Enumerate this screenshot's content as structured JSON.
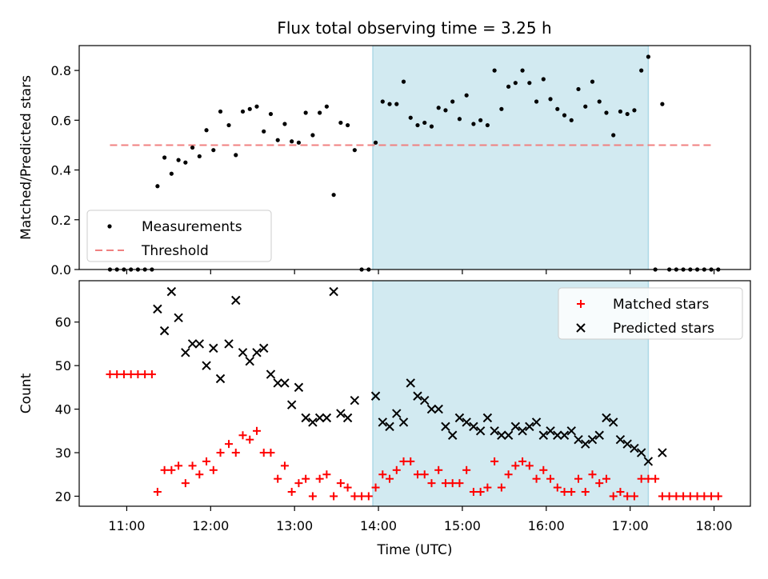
{
  "title": "Flux total observing time = 3.25 h",
  "colors": {
    "measurement": "#000000",
    "threshold": "#f08080",
    "matched": "#ff0000",
    "predicted": "#000000",
    "shade": "#add8e6"
  },
  "chart_data": [
    {
      "type": "scatter",
      "panel": "top",
      "xlabel": "",
      "ylabel": "Matched/Predicted stars",
      "ylim": [
        0,
        0.9
      ],
      "yticks": [
        "0.0",
        "0.2",
        "0.4",
        "0.6",
        "0.8"
      ],
      "x_tick_labels": [],
      "shaded_span": [
        "13:56",
        "17:13"
      ],
      "threshold": {
        "name": "Threshold",
        "value": 0.5,
        "x_range": [
          "10:48",
          "18:00"
        ]
      },
      "legend": [
        "Measurements",
        "Threshold"
      ],
      "legend_position": "lower-left",
      "series": [
        {
          "name": "Measurements",
          "points": [
            [
              "10:48",
              0
            ],
            [
              "10:53",
              0
            ],
            [
              "10:58",
              0
            ],
            [
              "11:03",
              0
            ],
            [
              "11:08",
              0
            ],
            [
              "11:13",
              0
            ],
            [
              "11:18",
              0
            ],
            [
              "11:22",
              0.335
            ],
            [
              "11:27",
              0.45
            ],
            [
              "11:32",
              0.385
            ],
            [
              "11:37",
              0.44
            ],
            [
              "11:42",
              0.43
            ],
            [
              "11:47",
              0.49
            ],
            [
              "11:52",
              0.455
            ],
            [
              "11:57",
              0.56
            ],
            [
              "12:02",
              0.48
            ],
            [
              "12:07",
              0.635
            ],
            [
              "12:13",
              0.58
            ],
            [
              "12:18",
              0.46
            ],
            [
              "12:23",
              0.635
            ],
            [
              "12:28",
              0.645
            ],
            [
              "12:33",
              0.655
            ],
            [
              "12:38",
              0.555
            ],
            [
              "12:43",
              0.625
            ],
            [
              "12:48",
              0.52
            ],
            [
              "12:53",
              0.585
            ],
            [
              "12:58",
              0.515
            ],
            [
              "13:03",
              0.51
            ],
            [
              "13:08",
              0.63
            ],
            [
              "13:13",
              0.54
            ],
            [
              "13:18",
              0.63
            ],
            [
              "13:23",
              0.655
            ],
            [
              "13:28",
              0.3
            ],
            [
              "13:33",
              0.59
            ],
            [
              "13:38",
              0.58
            ],
            [
              "13:43",
              0.48
            ],
            [
              "13:48",
              0
            ],
            [
              "13:53",
              0
            ],
            [
              "13:58",
              0.51
            ],
            [
              "14:03",
              0.675
            ],
            [
              "14:08",
              0.665
            ],
            [
              "14:13",
              0.665
            ],
            [
              "14:18",
              0.755
            ],
            [
              "14:23",
              0.61
            ],
            [
              "14:28",
              0.58
            ],
            [
              "14:33",
              0.59
            ],
            [
              "14:38",
              0.575
            ],
            [
              "14:43",
              0.65
            ],
            [
              "14:48",
              0.64
            ],
            [
              "14:53",
              0.675
            ],
            [
              "14:58",
              0.605
            ],
            [
              "15:03",
              0.7
            ],
            [
              "15:08",
              0.585
            ],
            [
              "15:13",
              0.6
            ],
            [
              "15:18",
              0.58
            ],
            [
              "15:23",
              0.8
            ],
            [
              "15:28",
              0.645
            ],
            [
              "15:33",
              0.735
            ],
            [
              "15:38",
              0.75
            ],
            [
              "15:43",
              0.8
            ],
            [
              "15:48",
              0.75
            ],
            [
              "15:53",
              0.675
            ],
            [
              "15:58",
              0.765
            ],
            [
              "16:03",
              0.685
            ],
            [
              "16:08",
              0.645
            ],
            [
              "16:13",
              0.62
            ],
            [
              "16:18",
              0.6
            ],
            [
              "16:23",
              0.725
            ],
            [
              "16:28",
              0.655
            ],
            [
              "16:33",
              0.755
            ],
            [
              "16:38",
              0.675
            ],
            [
              "16:43",
              0.63
            ],
            [
              "16:48",
              0.54
            ],
            [
              "16:53",
              0.635
            ],
            [
              "16:58",
              0.625
            ],
            [
              "17:03",
              0.64
            ],
            [
              "17:08",
              0.8
            ],
            [
              "17:13",
              0.855
            ],
            [
              "17:18",
              0
            ],
            [
              "17:23",
              0.665
            ],
            [
              "17:28",
              0
            ],
            [
              "17:33",
              0
            ],
            [
              "17:38",
              0
            ],
            [
              "17:43",
              0
            ],
            [
              "17:48",
              0
            ],
            [
              "17:53",
              0
            ],
            [
              "17:58",
              0
            ],
            [
              "18:03",
              0
            ]
          ]
        }
      ]
    },
    {
      "type": "scatter",
      "panel": "bottom",
      "xlabel": "Time (UTC)",
      "ylabel": "Count",
      "ylim": [
        17.7,
        69.5
      ],
      "yticks": [
        "20",
        "30",
        "40",
        "50",
        "60"
      ],
      "x_tick_labels": [
        "11:00",
        "12:00",
        "13:00",
        "14:00",
        "15:00",
        "16:00",
        "17:00",
        "18:00"
      ],
      "shaded_span": [
        "13:56",
        "17:13"
      ],
      "legend": [
        "Matched stars",
        "Predicted stars"
      ],
      "legend_position": "top-right",
      "series": [
        {
          "name": "Matched stars",
          "marker": "+",
          "points": [
            [
              "10:48",
              48
            ],
            [
              "10:53",
              48
            ],
            [
              "10:58",
              48
            ],
            [
              "11:03",
              48
            ],
            [
              "11:08",
              48
            ],
            [
              "11:13",
              48
            ],
            [
              "11:18",
              48
            ],
            [
              "11:22",
              21
            ],
            [
              "11:27",
              26
            ],
            [
              "11:32",
              26
            ],
            [
              "11:37",
              27
            ],
            [
              "11:42",
              23
            ],
            [
              "11:47",
              27
            ],
            [
              "11:52",
              25
            ],
            [
              "11:57",
              28
            ],
            [
              "12:02",
              26
            ],
            [
              "12:07",
              30
            ],
            [
              "12:13",
              32
            ],
            [
              "12:18",
              30
            ],
            [
              "12:23",
              34
            ],
            [
              "12:28",
              33
            ],
            [
              "12:33",
              35
            ],
            [
              "12:38",
              30
            ],
            [
              "12:43",
              30
            ],
            [
              "12:48",
              24
            ],
            [
              "12:53",
              27
            ],
            [
              "12:58",
              21
            ],
            [
              "13:03",
              23
            ],
            [
              "13:08",
              24
            ],
            [
              "13:13",
              20
            ],
            [
              "13:18",
              24
            ],
            [
              "13:23",
              25
            ],
            [
              "13:28",
              20
            ],
            [
              "13:33",
              23
            ],
            [
              "13:38",
              22
            ],
            [
              "13:43",
              20
            ],
            [
              "13:48",
              20
            ],
            [
              "13:53",
              20
            ],
            [
              "13:58",
              22
            ],
            [
              "14:03",
              25
            ],
            [
              "14:08",
              24
            ],
            [
              "14:13",
              26
            ],
            [
              "14:18",
              28
            ],
            [
              "14:23",
              28
            ],
            [
              "14:28",
              25
            ],
            [
              "14:33",
              25
            ],
            [
              "14:38",
              23
            ],
            [
              "14:43",
              26
            ],
            [
              "14:48",
              23
            ],
            [
              "14:53",
              23
            ],
            [
              "14:58",
              23
            ],
            [
              "15:03",
              26
            ],
            [
              "15:08",
              21
            ],
            [
              "15:13",
              21
            ],
            [
              "15:18",
              22
            ],
            [
              "15:23",
              28
            ],
            [
              "15:28",
              22
            ],
            [
              "15:33",
              25
            ],
            [
              "15:38",
              27
            ],
            [
              "15:43",
              28
            ],
            [
              "15:48",
              27
            ],
            [
              "15:53",
              24
            ],
            [
              "15:58",
              26
            ],
            [
              "16:03",
              24
            ],
            [
              "16:08",
              22
            ],
            [
              "16:13",
              21
            ],
            [
              "16:18",
              21
            ],
            [
              "16:23",
              24
            ],
            [
              "16:28",
              21
            ],
            [
              "16:33",
              25
            ],
            [
              "16:38",
              23
            ],
            [
              "16:43",
              24
            ],
            [
              "16:48",
              20
            ],
            [
              "16:53",
              21
            ],
            [
              "16:58",
              20
            ],
            [
              "17:03",
              20
            ],
            [
              "17:08",
              24
            ],
            [
              "17:13",
              24
            ],
            [
              "17:18",
              24
            ],
            [
              "17:23",
              20
            ],
            [
              "17:28",
              20
            ],
            [
              "17:33",
              20
            ],
            [
              "17:38",
              20
            ],
            [
              "17:43",
              20
            ],
            [
              "17:48",
              20
            ],
            [
              "17:53",
              20
            ],
            [
              "17:58",
              20
            ],
            [
              "18:03",
              20
            ]
          ]
        },
        {
          "name": "Predicted stars",
          "marker": "x",
          "points": [
            [
              "11:22",
              63
            ],
            [
              "11:27",
              58
            ],
            [
              "11:32",
              67
            ],
            [
              "11:37",
              61
            ],
            [
              "11:42",
              53
            ],
            [
              "11:47",
              55
            ],
            [
              "11:52",
              55
            ],
            [
              "11:57",
              50
            ],
            [
              "12:02",
              54
            ],
            [
              "12:07",
              47
            ],
            [
              "12:13",
              55
            ],
            [
              "12:18",
              65
            ],
            [
              "12:23",
              53
            ],
            [
              "12:28",
              51
            ],
            [
              "12:33",
              53
            ],
            [
              "12:38",
              54
            ],
            [
              "12:43",
              48
            ],
            [
              "12:48",
              46
            ],
            [
              "12:53",
              46
            ],
            [
              "12:58",
              41
            ],
            [
              "13:03",
              45
            ],
            [
              "13:08",
              38
            ],
            [
              "13:13",
              37
            ],
            [
              "13:18",
              38
            ],
            [
              "13:23",
              38
            ],
            [
              "13:28",
              67
            ],
            [
              "13:33",
              39
            ],
            [
              "13:38",
              38
            ],
            [
              "13:43",
              42
            ],
            [
              "13:58",
              43
            ],
            [
              "14:03",
              37
            ],
            [
              "14:08",
              36
            ],
            [
              "14:13",
              39
            ],
            [
              "14:18",
              37
            ],
            [
              "14:23",
              46
            ],
            [
              "14:28",
              43
            ],
            [
              "14:33",
              42
            ],
            [
              "14:38",
              40
            ],
            [
              "14:43",
              40
            ],
            [
              "14:48",
              36
            ],
            [
              "14:53",
              34
            ],
            [
              "14:58",
              38
            ],
            [
              "15:03",
              37
            ],
            [
              "15:08",
              36
            ],
            [
              "15:13",
              35
            ],
            [
              "15:18",
              38
            ],
            [
              "15:23",
              35
            ],
            [
              "15:28",
              34
            ],
            [
              "15:33",
              34
            ],
            [
              "15:38",
              36
            ],
            [
              "15:43",
              35
            ],
            [
              "15:48",
              36
            ],
            [
              "15:53",
              37
            ],
            [
              "15:58",
              34
            ],
            [
              "16:03",
              35
            ],
            [
              "16:08",
              34
            ],
            [
              "16:13",
              34
            ],
            [
              "16:18",
              35
            ],
            [
              "16:23",
              33
            ],
            [
              "16:28",
              32
            ],
            [
              "16:33",
              33
            ],
            [
              "16:38",
              34
            ],
            [
              "16:43",
              38
            ],
            [
              "16:48",
              37
            ],
            [
              "16:53",
              33
            ],
            [
              "16:58",
              32
            ],
            [
              "17:03",
              31
            ],
            [
              "17:08",
              30
            ],
            [
              "17:13",
              28
            ],
            [
              "17:23",
              30
            ]
          ]
        }
      ]
    }
  ]
}
